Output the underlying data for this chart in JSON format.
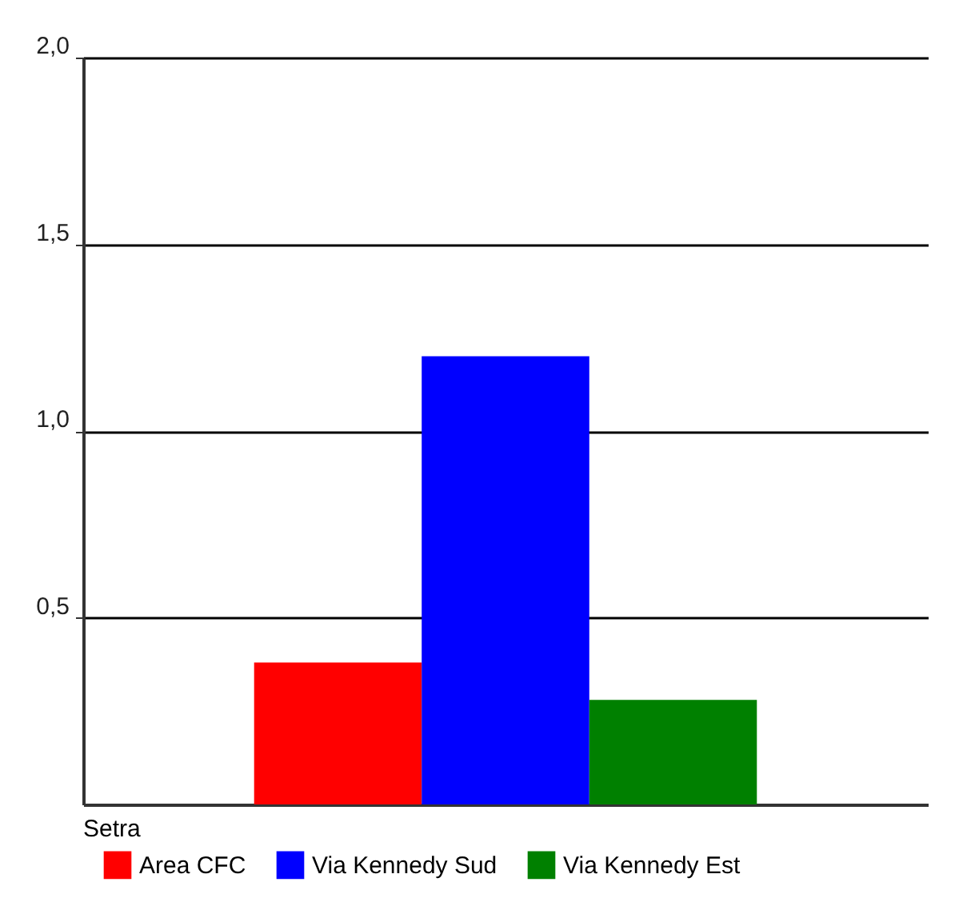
{
  "chart_data": {
    "type": "bar",
    "legend_title": "Setra",
    "categories": [
      null
    ],
    "series": [
      {
        "name": "Area CFC",
        "color": "#ff0000",
        "values": [
          0.38
        ]
      },
      {
        "name": "Via Kennedy Sud",
        "color": "#0000ff",
        "values": [
          1.2
        ]
      },
      {
        "name": "Via Kennedy Est",
        "color": "#008000",
        "values": [
          0.28
        ]
      }
    ],
    "ylim": [
      0,
      2
    ],
    "yticks": [
      {
        "value": 0.5,
        "label": "0,5"
      },
      {
        "value": 1,
        "label": "1,0"
      },
      {
        "value": 1.5,
        "label": "1,5"
      },
      {
        "value": 2,
        "label": "2,0"
      }
    ],
    "grid": "y",
    "legend": "bottom left",
    "tick_labels": "y"
  }
}
